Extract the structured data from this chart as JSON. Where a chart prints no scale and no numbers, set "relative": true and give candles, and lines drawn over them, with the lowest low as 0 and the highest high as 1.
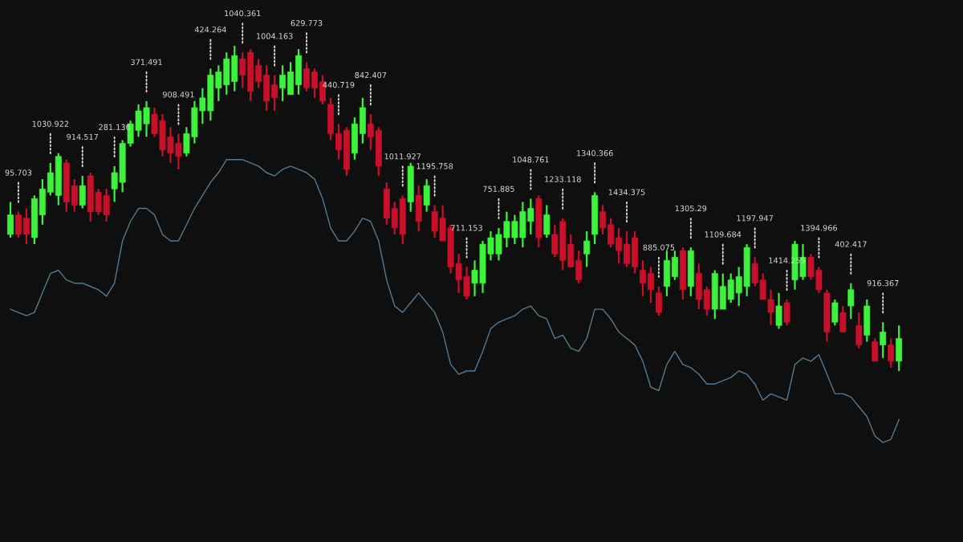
{
  "chart_data": {
    "type": "candlestick",
    "relative": true,
    "categories": [
      null,
      null,
      null,
      null,
      null,
      null,
      null,
      null,
      null,
      null,
      null,
      null,
      null,
      null,
      null,
      null,
      null,
      null,
      null,
      null,
      null,
      null,
      null,
      null,
      null,
      null,
      null,
      null,
      null,
      null,
      null,
      null,
      null,
      null,
      null,
      null,
      null,
      null,
      null,
      null,
      null,
      null,
      null,
      null,
      null,
      null,
      null,
      null,
      null,
      null,
      null,
      null,
      null,
      null,
      null,
      null,
      null,
      null,
      null,
      null,
      null,
      null,
      null,
      null,
      null,
      null,
      null,
      null,
      null,
      null,
      null,
      null,
      null,
      null,
      null,
      null,
      null,
      null,
      null,
      null,
      null,
      null,
      null,
      null,
      null,
      null,
      null,
      null,
      null,
      null,
      null,
      null,
      null,
      null,
      null,
      null,
      null,
      null,
      null,
      null,
      null,
      null,
      null,
      null,
      null,
      null,
      null,
      null,
      null,
      null,
      null,
      null
    ],
    "ohlc": [
      [
        0.42,
        0.52,
        0.41,
        0.48
      ],
      [
        0.48,
        0.49,
        0.41,
        0.42
      ],
      [
        0.47,
        0.5,
        0.39,
        0.42
      ],
      [
        0.41,
        0.54,
        0.39,
        0.53
      ],
      [
        0.48,
        0.59,
        0.45,
        0.56
      ],
      [
        0.55,
        0.64,
        0.54,
        0.61
      ],
      [
        0.54,
        0.67,
        0.51,
        0.66
      ],
      [
        0.64,
        0.65,
        0.49,
        0.52
      ],
      [
        0.57,
        0.59,
        0.49,
        0.51
      ],
      [
        0.51,
        0.6,
        0.5,
        0.57
      ],
      [
        0.6,
        0.61,
        0.46,
        0.49
      ],
      [
        0.55,
        0.56,
        0.48,
        0.49
      ],
      [
        0.54,
        0.56,
        0.46,
        0.48
      ],
      [
        0.56,
        0.63,
        0.52,
        0.61
      ],
      [
        0.58,
        0.71,
        0.55,
        0.7
      ],
      [
        0.7,
        0.77,
        0.69,
        0.76
      ],
      [
        0.74,
        0.82,
        0.72,
        0.8
      ],
      [
        0.76,
        0.83,
        0.72,
        0.81
      ],
      [
        0.79,
        0.81,
        0.72,
        0.73
      ],
      [
        0.77,
        0.79,
        0.66,
        0.68
      ],
      [
        0.72,
        0.75,
        0.64,
        0.67
      ],
      [
        0.7,
        0.73,
        0.62,
        0.66
      ],
      [
        0.67,
        0.75,
        0.66,
        0.73
      ],
      [
        0.72,
        0.83,
        0.7,
        0.81
      ],
      [
        0.8,
        0.87,
        0.76,
        0.84
      ],
      [
        0.8,
        0.93,
        0.77,
        0.91
      ],
      [
        0.87,
        0.94,
        0.83,
        0.92
      ],
      [
        0.88,
        0.98,
        0.85,
        0.96
      ],
      [
        0.89,
        1.0,
        0.86,
        0.97
      ],
      [
        0.96,
        0.98,
        0.87,
        0.91
      ],
      [
        0.98,
        0.99,
        0.83,
        0.86
      ],
      [
        0.94,
        0.96,
        0.87,
        0.89
      ],
      [
        0.91,
        0.94,
        0.8,
        0.83
      ],
      [
        0.88,
        0.91,
        0.8,
        0.84
      ],
      [
        0.87,
        0.94,
        0.83,
        0.91
      ],
      [
        0.85,
        0.95,
        0.85,
        0.92
      ],
      [
        0.88,
        0.99,
        0.85,
        0.97
      ],
      [
        0.93,
        0.95,
        0.86,
        0.87
      ],
      [
        0.92,
        0.93,
        0.84,
        0.87
      ],
      [
        0.89,
        0.91,
        0.82,
        0.83
      ],
      [
        0.82,
        0.84,
        0.71,
        0.73
      ],
      [
        0.73,
        0.76,
        0.65,
        0.68
      ],
      [
        0.74,
        0.75,
        0.6,
        0.62
      ],
      [
        0.67,
        0.78,
        0.65,
        0.76
      ],
      [
        0.73,
        0.84,
        0.7,
        0.81
      ],
      [
        0.76,
        0.79,
        0.68,
        0.72
      ],
      [
        0.74,
        0.75,
        0.6,
        0.63
      ],
      [
        0.56,
        0.58,
        0.45,
        0.47
      ],
      [
        0.5,
        0.52,
        0.42,
        0.44
      ],
      [
        0.53,
        0.54,
        0.39,
        0.42
      ],
      [
        0.52,
        0.64,
        0.49,
        0.63
      ],
      [
        0.54,
        0.57,
        0.43,
        0.46
      ],
      [
        0.51,
        0.59,
        0.49,
        0.57
      ],
      [
        0.49,
        0.51,
        0.41,
        0.43
      ],
      [
        0.47,
        0.51,
        0.4,
        0.4
      ],
      [
        0.44,
        0.45,
        0.3,
        0.32
      ],
      [
        0.33,
        0.36,
        0.24,
        0.28
      ],
      [
        0.29,
        0.32,
        0.22,
        0.23
      ],
      [
        0.27,
        0.34,
        0.23,
        0.31
      ],
      [
        0.27,
        0.4,
        0.24,
        0.39
      ],
      [
        0.36,
        0.43,
        0.34,
        0.41
      ],
      [
        0.36,
        0.44,
        0.34,
        0.42
      ],
      [
        0.41,
        0.49,
        0.38,
        0.46
      ],
      [
        0.41,
        0.48,
        0.39,
        0.46
      ],
      [
        0.41,
        0.52,
        0.38,
        0.49
      ],
      [
        0.46,
        0.53,
        0.42,
        0.5
      ],
      [
        0.53,
        0.54,
        0.38,
        0.41
      ],
      [
        0.42,
        0.51,
        0.41,
        0.48
      ],
      [
        0.42,
        0.45,
        0.35,
        0.36
      ],
      [
        0.46,
        0.47,
        0.31,
        0.34
      ],
      [
        0.39,
        0.42,
        0.32,
        0.32
      ],
      [
        0.34,
        0.37,
        0.27,
        0.28
      ],
      [
        0.36,
        0.43,
        0.32,
        0.4
      ],
      [
        0.42,
        0.55,
        0.39,
        0.54
      ],
      [
        0.49,
        0.51,
        0.42,
        0.44
      ],
      [
        0.45,
        0.47,
        0.38,
        0.39
      ],
      [
        0.41,
        0.44,
        0.33,
        0.37
      ],
      [
        0.39,
        0.43,
        0.32,
        0.33
      ],
      [
        0.41,
        0.43,
        0.3,
        0.32
      ],
      [
        0.31,
        0.34,
        0.23,
        0.27
      ],
      [
        0.3,
        0.32,
        0.21,
        0.25
      ],
      [
        0.24,
        0.26,
        0.17,
        0.18
      ],
      [
        0.26,
        0.37,
        0.23,
        0.34
      ],
      [
        0.29,
        0.37,
        0.28,
        0.35
      ],
      [
        0.37,
        0.38,
        0.22,
        0.25
      ],
      [
        0.26,
        0.38,
        0.23,
        0.37
      ],
      [
        0.3,
        0.33,
        0.19,
        0.22
      ],
      [
        0.25,
        0.26,
        0.17,
        0.19
      ],
      [
        0.19,
        0.31,
        0.16,
        0.3
      ],
      [
        0.19,
        0.3,
        0.19,
        0.26
      ],
      [
        0.22,
        0.3,
        0.21,
        0.28
      ],
      [
        0.24,
        0.32,
        0.2,
        0.29
      ],
      [
        0.26,
        0.39,
        0.23,
        0.38
      ],
      [
        0.33,
        0.35,
        0.26,
        0.27
      ],
      [
        0.28,
        0.3,
        0.22,
        0.22
      ],
      [
        0.22,
        0.25,
        0.14,
        0.18
      ],
      [
        0.14,
        0.24,
        0.13,
        0.2
      ],
      [
        0.21,
        0.22,
        0.14,
        0.15
      ],
      [
        0.28,
        0.4,
        0.25,
        0.39
      ],
      [
        0.29,
        0.39,
        0.28,
        0.35
      ],
      [
        0.35,
        0.36,
        0.28,
        0.29
      ],
      [
        0.31,
        0.32,
        0.24,
        0.25
      ],
      [
        0.24,
        0.25,
        0.09,
        0.12
      ],
      [
        0.15,
        0.22,
        0.14,
        0.21
      ],
      [
        0.18,
        0.2,
        0.12,
        0.12
      ],
      [
        0.2,
        0.27,
        0.16,
        0.25
      ],
      [
        0.14,
        0.18,
        0.07,
        0.08
      ],
      [
        0.11,
        0.22,
        0.09,
        0.2
      ],
      [
        0.09,
        0.1,
        0.03,
        0.03
      ],
      [
        0.08,
        0.15,
        0.04,
        0.12
      ],
      [
        0.08,
        0.1,
        0.01,
        0.03
      ],
      [
        0.03,
        0.14,
        0,
        0.1
      ]
    ],
    "colors": [
      "#3df23a",
      "#c9102a",
      "#c9102a",
      "#3df23a",
      "#3df23a",
      "#3df23a",
      "#3df23a",
      "#c9102a",
      "#c9102a",
      "#3df23a",
      "#c9102a",
      "#c9102a",
      "#c9102a",
      "#3df23a",
      "#3df23a",
      "#3df23a",
      "#3df23a",
      "#3df23a",
      "#c9102a",
      "#c9102a",
      "#c9102a",
      "#c9102a",
      "#3df23a",
      "#3df23a",
      "#3df23a",
      "#3df23a",
      "#3df23a",
      "#3df23a",
      "#3df23a",
      "#c9102a",
      "#c9102a",
      "#c9102a",
      "#c9102a",
      "#c9102a",
      "#3df23a",
      "#3df23a",
      "#3df23a",
      "#c9102a",
      "#c9102a",
      "#c9102a",
      "#c9102a",
      "#c9102a",
      "#c9102a",
      "#3df23a",
      "#3df23a",
      "#c9102a",
      "#c9102a",
      "#c9102a",
      "#c9102a",
      "#c9102a",
      "#3df23a",
      "#c9102a",
      "#3df23a",
      "#c9102a",
      "#c9102a",
      "#c9102a",
      "#c9102a",
      "#c9102a",
      "#3df23a",
      "#3df23a",
      "#3df23a",
      "#3df23a",
      "#3df23a",
      "#3df23a",
      "#3df23a",
      "#3df23a",
      "#c9102a",
      "#3df23a",
      "#c9102a",
      "#c9102a",
      "#c9102a",
      "#c9102a",
      "#3df23a",
      "#3df23a",
      "#c9102a",
      "#c9102a",
      "#c9102a",
      "#c9102a",
      "#c9102a",
      "#c9102a",
      "#c9102a",
      "#c9102a",
      "#3df23a",
      "#3df23a",
      "#c9102a",
      "#3df23a",
      "#c9102a",
      "#c9102a",
      "#3df23a",
      "#3df23a",
      "#3df23a",
      "#3df23a",
      "#3df23a",
      "#c9102a",
      "#c9102a",
      "#c9102a",
      "#3df23a",
      "#c9102a",
      "#3df23a",
      "#3df23a",
      "#c9102a",
      "#c9102a",
      "#c9102a",
      "#3df23a",
      "#c9102a",
      "#3df23a",
      "#c9102a",
      "#3df23a",
      "#c9102a",
      "#3df23a",
      "#c9102a",
      "#3df23a"
    ],
    "series": [
      {
        "type": "line",
        "color": "#557a90",
        "values": [
          0.19,
          0.18,
          0.17,
          0.18,
          0.24,
          0.3,
          0.31,
          0.28,
          0.27,
          0.27,
          0.26,
          0.25,
          0.23,
          0.27,
          0.4,
          0.46,
          0.5,
          0.5,
          0.48,
          0.42,
          0.4,
          0.4,
          0.45,
          0.5,
          0.54,
          0.58,
          0.61,
          0.65,
          0.65,
          0.65,
          0.64,
          0.63,
          0.61,
          0.6,
          0.62,
          0.63,
          0.62,
          0.61,
          0.59,
          0.53,
          0.44,
          0.4,
          0.4,
          0.43,
          0.47,
          0.46,
          0.4,
          0.28,
          0.2,
          0.18,
          0.21,
          0.24,
          0.21,
          0.18,
          0.12,
          0.02,
          -0.01,
          0.0,
          0.0,
          0.06,
          0.13,
          0.15,
          0.16,
          0.17,
          0.19,
          0.2,
          0.17,
          0.16,
          0.1,
          0.11,
          0.07,
          0.06,
          0.1,
          0.19,
          0.19,
          0.16,
          0.12,
          0.1,
          0.08,
          0.03,
          -0.05,
          -0.06,
          0.02,
          0.06,
          0.02,
          0.01,
          -0.01,
          -0.04,
          -0.04,
          -0.03,
          -0.02,
          0,
          -0.01,
          -0.04,
          -0.09,
          -0.07,
          -0.08,
          -0.09,
          0.02,
          0.04,
          0.03,
          0.05,
          -0.01,
          -0.07,
          -0.07,
          -0.08,
          -0.11,
          -0.14,
          -0.2,
          -0.22,
          -0.21,
          -0.15
        ]
      }
    ],
    "annotations": [
      "95.703",
      "1030.922",
      "914.517",
      "281.136",
      "371.491",
      "908.491",
      "424.264",
      "1040.361",
      "1004.163",
      "629.773",
      "440.719",
      "842.407",
      "1011.927",
      "1195.758",
      "711.153",
      "751.885",
      "1048.761",
      "1233.118",
      "1340.366",
      "1434.375",
      "885.075",
      "1305.29",
      "1109.684",
      "1197.947",
      "1414.255",
      "1394.966",
      "402.417",
      "916.367"
    ]
  }
}
